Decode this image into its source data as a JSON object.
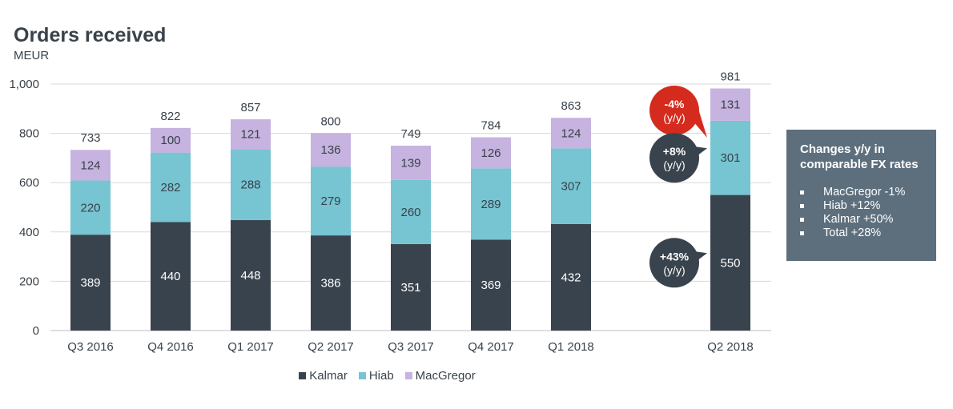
{
  "header": {
    "title": "Orders received",
    "unit": "MEUR"
  },
  "colors": {
    "Kalmar": "#39434d",
    "Hiab": "#77c4d2",
    "MacGregor": "#c6b3df",
    "gridline": "#d9d9d9",
    "negative_callout": "#d52b1e",
    "positive_callout": "#39434d",
    "info_box": "#5d6f7d"
  },
  "chart_data": {
    "type": "bar",
    "stacked": true,
    "categories": [
      "Q3 2016",
      "Q4 2016",
      "Q1 2017",
      "Q2 2017",
      "Q3 2017",
      "Q4 2017",
      "Q1 2018",
      "Q2 2018"
    ],
    "series": [
      {
        "name": "Kalmar",
        "values": [
          389,
          440,
          448,
          386,
          351,
          369,
          432,
          550
        ]
      },
      {
        "name": "Hiab",
        "values": [
          220,
          282,
          288,
          279,
          260,
          289,
          307,
          301
        ]
      },
      {
        "name": "MacGregor",
        "values": [
          124,
          100,
          121,
          136,
          139,
          126,
          124,
          131
        ]
      }
    ],
    "totals": [
      733,
      822,
      857,
      800,
      749,
      784,
      863,
      981
    ],
    "title": "Orders received",
    "ylabel": "MEUR",
    "ylim": [
      0,
      1000
    ],
    "yticks": [
      "0",
      "200",
      "400",
      "600",
      "800",
      "1,000"
    ],
    "grid": true,
    "legend_position": "bottom",
    "annotations": [
      {
        "series": "MacGregor",
        "category": "Q2 2018",
        "line1": "-4%",
        "line2": "(y/y)",
        "sign": "negative"
      },
      {
        "series": "Hiab",
        "category": "Q2 2018",
        "line1": "+8%",
        "line2": "(y/y)",
        "sign": "positive"
      },
      {
        "series": "Kalmar",
        "category": "Q2 2018",
        "line1": "+43%",
        "line2": "(y/y)",
        "sign": "positive"
      }
    ]
  },
  "legend": {
    "items": [
      "Kalmar",
      "Hiab",
      "MacGregor"
    ]
  },
  "info_box": {
    "title": "Changes y/y in comparable FX rates",
    "items": [
      "MacGregor -1%",
      "Hiab +12%",
      "Kalmar +50%",
      "Total +28%"
    ]
  }
}
